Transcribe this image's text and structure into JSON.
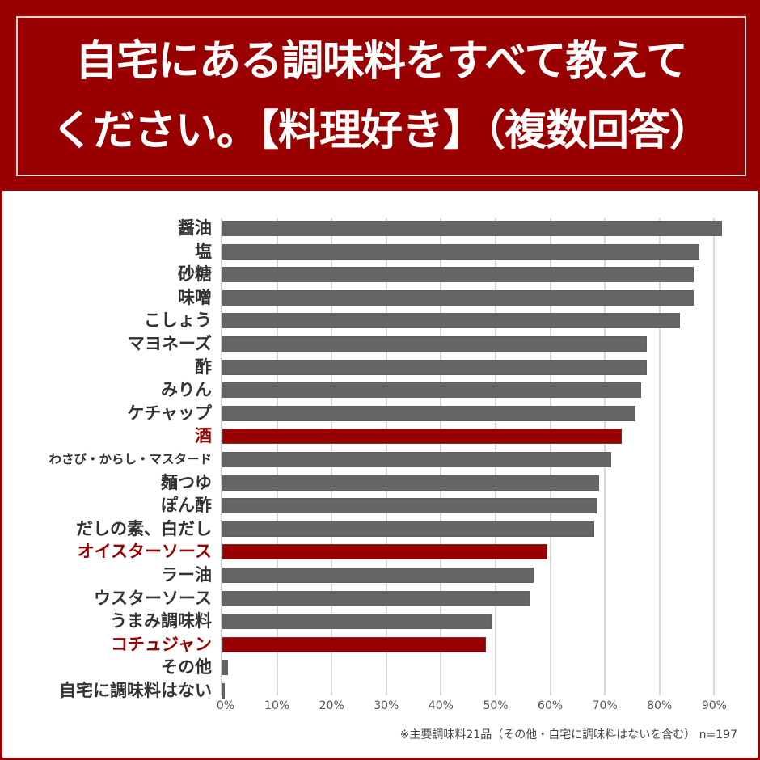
{
  "title": {
    "line1": "自宅にある調味料をすべて教えて",
    "line2": "ください。【料理好き】（複数回答）"
  },
  "colors": {
    "background": "#990000",
    "bar_default": "#666666",
    "bar_highlight": "#990000",
    "label_default": "#333333",
    "label_highlight": "#990000",
    "gridline": "#d9d9d9"
  },
  "footnote": "※主要調味料21品（その他・自宅に調味料はないを含む） n=197",
  "chart_data": {
    "type": "bar",
    "orientation": "horizontal",
    "title": "自宅にある調味料をすべて教えてください。【料理好き】（複数回答）",
    "xlabel": "",
    "ylabel": "",
    "xlim": [
      0,
      92
    ],
    "grid": true,
    "unit": "%",
    "n": 197,
    "categories": [
      "醤油",
      "塩",
      "砂糖",
      "味噌",
      "こしょう",
      "マヨネーズ",
      "酢",
      "みりん",
      "ケチャップ",
      "酒",
      "わさび・からし・マスタード",
      "麺つゆ",
      "ぽん酢",
      "だしの素、白だし",
      "オイスターソース",
      "ラー油",
      "ウスターソース",
      "うまみ調味料",
      "コチュジャン",
      "その他",
      "自宅に調味料はない"
    ],
    "values": [
      91.4,
      87.3,
      86.3,
      86.3,
      83.8,
      77.7,
      77.7,
      76.6,
      75.6,
      73.1,
      71.1,
      69.0,
      68.5,
      68.0,
      59.4,
      56.9,
      56.3,
      49.2,
      48.2,
      1.0,
      0.5
    ],
    "highlighted": [
      "酒",
      "オイスターソース",
      "コチュジャン"
    ],
    "xticks": [
      "0%",
      "10%",
      "20%",
      "30%",
      "40%",
      "50%",
      "60%",
      "70%",
      "80%",
      "90%"
    ],
    "footnote": "※主要調味料21品（その他・自宅に調味料はないを含む） n=197"
  }
}
